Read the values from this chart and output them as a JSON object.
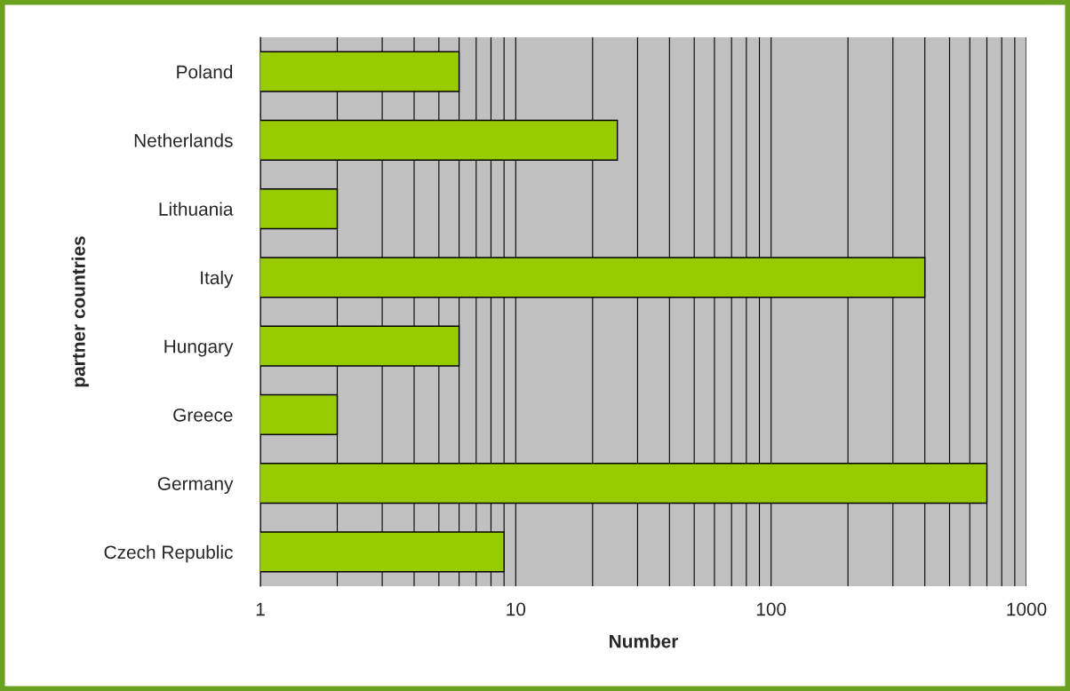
{
  "chart_data": {
    "type": "bar",
    "orientation": "horizontal",
    "xlabel": "Number",
    "ylabel": "partner countries",
    "categories": [
      "Poland",
      "Netherlands",
      "Lithuania",
      "Italy",
      "Hungary",
      "Greece",
      "Germany",
      "Czech Republic"
    ],
    "values": [
      6,
      25,
      2,
      400,
      6,
      2,
      700,
      9
    ],
    "color": "#99cc00",
    "log": "x",
    "xlim": [
      1,
      1000
    ],
    "xticks": [
      1,
      10,
      100,
      1000
    ],
    "grid": "x"
  }
}
